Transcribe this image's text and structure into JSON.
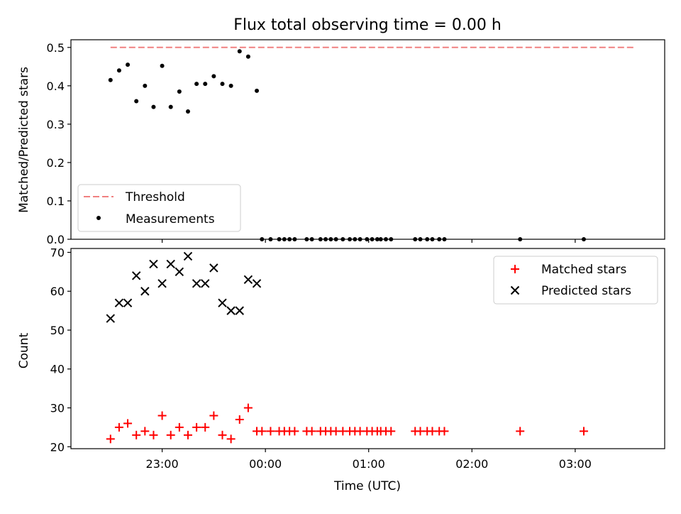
{
  "chart_data": [
    {
      "type": "scatter",
      "title": "Flux total observing time = 0.00 h",
      "xlabel": "",
      "ylabel": "Matched/Predicted stars",
      "ylim": [
        0,
        0.52
      ],
      "yticks": [
        "0.0",
        "0.1",
        "0.2",
        "0.3",
        "0.4",
        "0.5"
      ],
      "ytick_values": [
        0,
        0.1,
        0.2,
        0.3,
        0.4,
        0.5
      ],
      "legend": {
        "placement": "lower-left",
        "entries": [
          "Threshold",
          "Measurements"
        ]
      },
      "threshold": {
        "name": "Threshold",
        "value": 0.5,
        "x_start": "22:30",
        "x_end": "03:35",
        "color": "#f08080"
      },
      "series": [
        {
          "name": "Measurements",
          "color": "#000000",
          "x": [
            "22:30",
            "22:35",
            "22:40",
            "22:45",
            "22:50",
            "22:55",
            "23:00",
            "23:05",
            "23:10",
            "23:15",
            "23:20",
            "23:25",
            "23:30",
            "23:35",
            "23:40",
            "23:45",
            "23:50",
            "23:55",
            "23:58",
            "00:03",
            "00:08",
            "00:11",
            "00:14",
            "00:17",
            "00:24",
            "00:27",
            "00:32",
            "00:35",
            "00:38",
            "00:41",
            "00:45",
            "00:49",
            "00:52",
            "00:55",
            "00:59",
            "01:02",
            "01:05",
            "01:07",
            "01:10",
            "01:13",
            "01:27",
            "01:30",
            "01:34",
            "01:37",
            "01:41",
            "01:44",
            "02:28",
            "03:05"
          ],
          "y": [
            0.415,
            0.44,
            0.455,
            0.36,
            0.4,
            0.345,
            0.452,
            0.345,
            0.385,
            0.333,
            0.405,
            0.405,
            0.425,
            0.405,
            0.4,
            0.49,
            0.476,
            0.387,
            0,
            0,
            0,
            0,
            0,
            0,
            0,
            0,
            0,
            0,
            0,
            0,
            0,
            0,
            0,
            0,
            0,
            0,
            0,
            0,
            0,
            0,
            0,
            0,
            0,
            0,
            0,
            0,
            0,
            0
          ]
        }
      ]
    },
    {
      "type": "scatter",
      "title": "",
      "xlabel": "Time (UTC)",
      "ylabel": "Count",
      "ylim": [
        19.5,
        71
      ],
      "yticks": [
        "20",
        "30",
        "40",
        "50",
        "60",
        "70"
      ],
      "ytick_values": [
        20,
        30,
        40,
        50,
        60,
        70
      ],
      "xticks": [
        "23:00",
        "00:00",
        "01:00",
        "02:00",
        "03:00"
      ],
      "xtick_times": [
        "23:00",
        "00:00",
        "01:00",
        "02:00",
        "03:00"
      ],
      "xlim": [
        "22:07",
        "03:52"
      ],
      "legend": {
        "placement": "top-right",
        "entries": [
          "Matched stars",
          "Predicted stars"
        ]
      },
      "series": [
        {
          "name": "Matched stars",
          "color": "#ff0000",
          "marker": "plus",
          "x": [
            "22:30",
            "22:35",
            "22:40",
            "22:45",
            "22:50",
            "22:55",
            "23:00",
            "23:05",
            "23:10",
            "23:15",
            "23:20",
            "23:25",
            "23:30",
            "23:35",
            "23:40",
            "23:45",
            "23:50",
            "23:55",
            "23:58",
            "00:03",
            "00:08",
            "00:11",
            "00:14",
            "00:17",
            "00:24",
            "00:27",
            "00:32",
            "00:35",
            "00:38",
            "00:41",
            "00:45",
            "00:49",
            "00:52",
            "00:55",
            "00:59",
            "01:02",
            "01:05",
            "01:07",
            "01:10",
            "01:13",
            "01:27",
            "01:30",
            "01:34",
            "01:37",
            "01:41",
            "01:44",
            "02:28",
            "03:05"
          ],
          "y": [
            22,
            25,
            26,
            23,
            24,
            23,
            28,
            23,
            25,
            23,
            25,
            25,
            28,
            23,
            22,
            27,
            30,
            24,
            24,
            24,
            24,
            24,
            24,
            24,
            24,
            24,
            24,
            24,
            24,
            24,
            24,
            24,
            24,
            24,
            24,
            24,
            24,
            24,
            24,
            24,
            24,
            24,
            24,
            24,
            24,
            24,
            24,
            24
          ]
        },
        {
          "name": "Predicted stars",
          "color": "#000000",
          "marker": "x",
          "x": [
            "22:30",
            "22:35",
            "22:40",
            "22:45",
            "22:50",
            "22:55",
            "23:00",
            "23:05",
            "23:10",
            "23:15",
            "23:20",
            "23:25",
            "23:30",
            "23:35",
            "23:40",
            "23:45",
            "23:50",
            "23:55"
          ],
          "y": [
            53,
            57,
            57,
            64,
            60,
            67,
            62,
            67,
            65,
            69,
            62,
            62,
            66,
            57,
            55,
            55,
            63,
            62
          ]
        }
      ]
    }
  ]
}
